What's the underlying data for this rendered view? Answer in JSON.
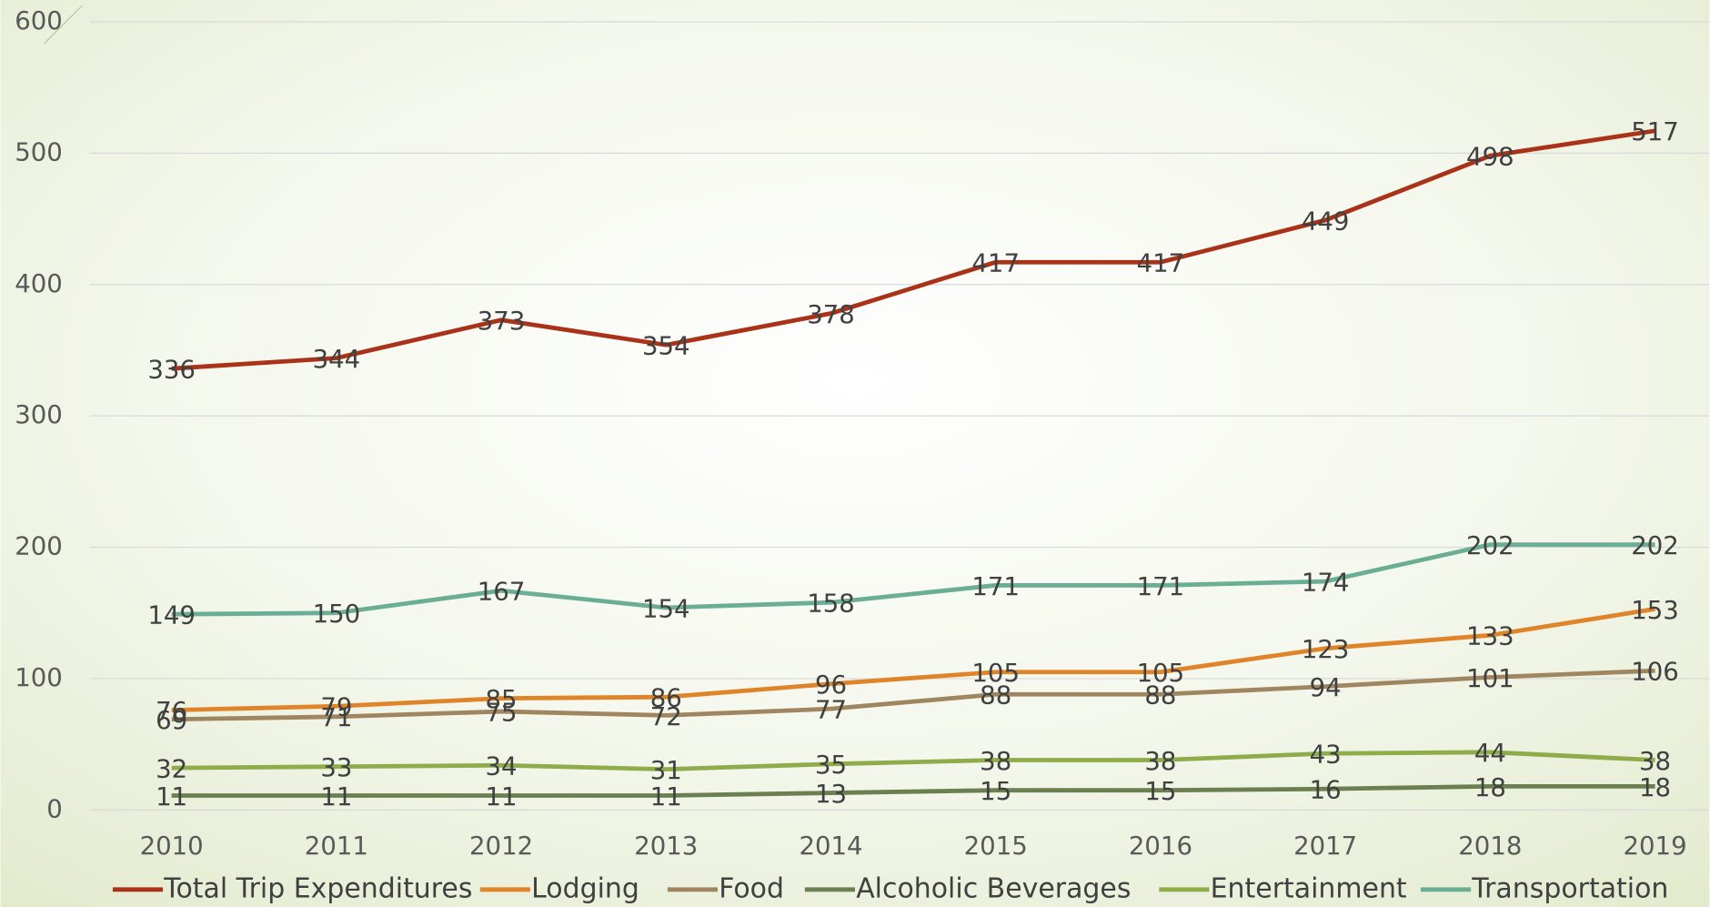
{
  "chart_data": {
    "type": "line",
    "categories": [
      "2010",
      "2011",
      "2012",
      "2013",
      "2014",
      "2015",
      "2016",
      "2017",
      "2018",
      "2019"
    ],
    "series": [
      {
        "name": "Total Trip Expenditures",
        "color": "#a93218",
        "values": [
          336,
          344,
          373,
          354,
          378,
          417,
          417,
          449,
          498,
          517
        ]
      },
      {
        "name": "Lodging",
        "color": "#e0842a",
        "values": [
          76,
          79,
          85,
          86,
          96,
          105,
          105,
          123,
          133,
          153
        ]
      },
      {
        "name": "Food",
        "color": "#a08660",
        "values": [
          69,
          71,
          75,
          72,
          77,
          88,
          88,
          94,
          101,
          106
        ]
      },
      {
        "name": "Alcoholic Beverages",
        "color": "#6b7f50",
        "values": [
          11,
          11,
          11,
          11,
          13,
          15,
          15,
          16,
          18,
          18
        ]
      },
      {
        "name": "Entertainment",
        "color": "#8fac4a",
        "values": [
          32,
          33,
          34,
          31,
          35,
          38,
          38,
          43,
          44,
          38
        ]
      },
      {
        "name": "Transportation",
        "color": "#6aae96",
        "values": [
          149,
          150,
          167,
          154,
          158,
          171,
          171,
          174,
          202,
          202
        ]
      }
    ],
    "ylim": [
      0,
      600
    ],
    "yticks": [
      0,
      100,
      200,
      300,
      400,
      500,
      600
    ],
    "grid": true,
    "legend": "bottom"
  }
}
